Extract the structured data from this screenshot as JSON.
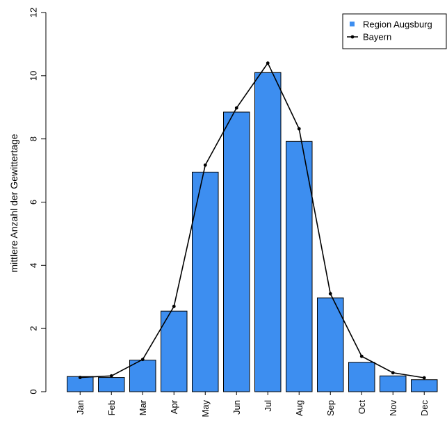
{
  "chart_data": {
    "type": "bar",
    "title": "",
    "xlabel": "",
    "ylabel": "mittlere Anzahl der Gewittertage",
    "ylim": [
      0,
      12
    ],
    "yticks": [
      0,
      2,
      4,
      6,
      8,
      10,
      12
    ],
    "grid": false,
    "legend_position": "top-right",
    "categories": [
      "Jan",
      "Feb",
      "Mar",
      "Apr",
      "May",
      "Jun",
      "Jul",
      "Aug",
      "Sep",
      "Oct",
      "Nov",
      "Dec"
    ],
    "series": [
      {
        "name": "Region Augsburg",
        "kind": "bar",
        "color": "#3d8ef0",
        "values": [
          0.48,
          0.45,
          1.0,
          2.55,
          6.95,
          8.85,
          10.1,
          7.92,
          2.97,
          0.93,
          0.5,
          0.38
        ]
      },
      {
        "name": "Bayern",
        "kind": "line",
        "color": "#000000",
        "values": [
          0.45,
          0.5,
          1.02,
          2.7,
          7.17,
          8.98,
          10.4,
          8.32,
          3.1,
          1.12,
          0.6,
          0.44
        ]
      }
    ]
  }
}
